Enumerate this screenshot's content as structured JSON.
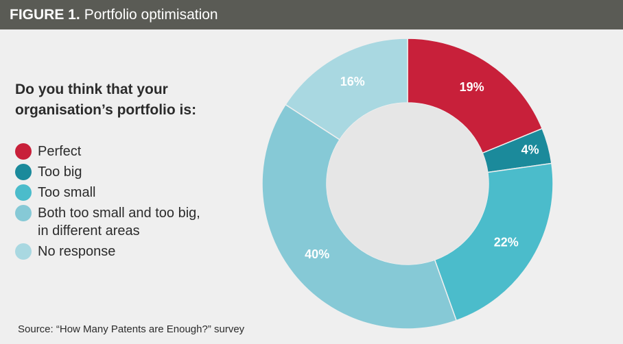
{
  "header": {
    "figure_label": "FIGURE 1.",
    "title": "Portfolio optimisation"
  },
  "question": "Do you think that your organisation’s portfolio is:",
  "source": "Source: “How Many Patents are Enough?” survey",
  "colors": {
    "perfect": "#c8203a",
    "too_big": "#1b8a9b",
    "too_small": "#4bbccb",
    "both": "#86c9d6",
    "no_response": "#a9d8e1",
    "center": "#e6e6e6",
    "header_bg": "#5a5b55"
  },
  "chart_data": {
    "type": "pie",
    "donut": true,
    "title": "",
    "categories": [
      "Perfect",
      "Too big",
      "Too small",
      "Both too small and too big, in different areas",
      "No response"
    ],
    "values": [
      19,
      4,
      22,
      40,
      16
    ],
    "labels": [
      "19%",
      "4%",
      "22%",
      "40%",
      "16%"
    ],
    "unit": "%",
    "legend_position": "left"
  },
  "legend": [
    {
      "label": "Perfect",
      "color": "#c8203a"
    },
    {
      "label": "Too big",
      "color": "#1b8a9b"
    },
    {
      "label": "Too small",
      "color": "#4bbccb"
    },
    {
      "label": "Both too small and too big,\nin different areas",
      "color": "#86c9d6"
    },
    {
      "label": "No response",
      "color": "#a9d8e1"
    }
  ]
}
